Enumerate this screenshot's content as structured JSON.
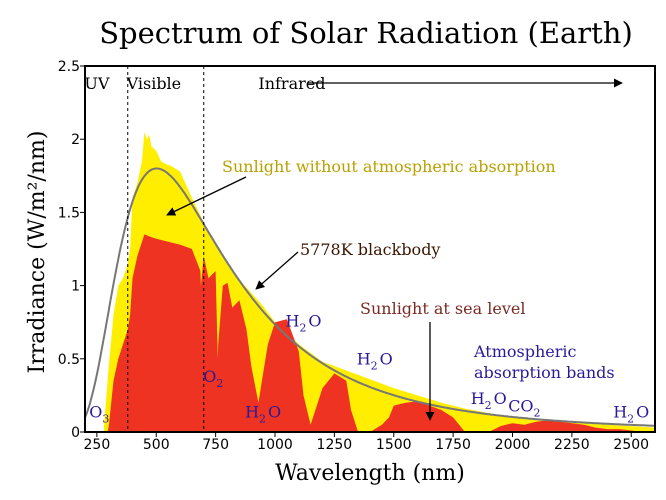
{
  "chart_data": {
    "type": "area",
    "title": "Spectrum of Solar Radiation (Earth)",
    "xlabel": "Wavelength (nm)",
    "ylabel": "Irradiance (W/m²/nm)",
    "xlim": [
      200,
      2600
    ],
    "ylim": [
      0,
      2.5
    ],
    "x_ticks": [
      250,
      500,
      750,
      1000,
      1250,
      1500,
      1750,
      2000,
      2250,
      2500
    ],
    "y_ticks": [
      0,
      0.5,
      1,
      1.5,
      2,
      2.5
    ],
    "y_tick_labels": [
      "0",
      "0.5",
      "1",
      "1.5",
      "2",
      "2.5"
    ],
    "region_boundaries": [
      380,
      700
    ],
    "regions": [
      {
        "label": "UV",
        "x": 250
      },
      {
        "label": "Visible",
        "x": 490
      },
      {
        "label": "Infrared",
        "x": 930
      }
    ],
    "series": [
      {
        "name": "Sunlight without atmospheric absorption",
        "color": "#ffee00",
        "x": [
          280,
          300,
          320,
          340,
          360,
          380,
          390,
          400,
          420,
          440,
          450,
          460,
          470,
          480,
          500,
          520,
          540,
          560,
          600,
          650,
          700,
          750,
          800,
          850,
          900,
          950,
          1000,
          1050,
          1100,
          1200,
          1300,
          1400,
          1500,
          1600,
          1700,
          1800,
          1900,
          2000,
          2100,
          2200,
          2300,
          2400,
          2500,
          2600
        ],
        "values": [
          0.04,
          0.45,
          0.8,
          1.0,
          1.05,
          1.15,
          1.25,
          1.6,
          1.7,
          1.85,
          2.05,
          2.0,
          2.03,
          1.95,
          1.92,
          1.85,
          1.83,
          1.82,
          1.78,
          1.6,
          1.43,
          1.3,
          1.15,
          1.04,
          0.95,
          0.86,
          0.75,
          0.68,
          0.6,
          0.48,
          0.42,
          0.36,
          0.3,
          0.25,
          0.2,
          0.16,
          0.13,
          0.1,
          0.08,
          0.07,
          0.06,
          0.05,
          0.04,
          0.03
        ]
      },
      {
        "name": "Sunlight at sea level",
        "color": "#ee3322",
        "x": [
          295,
          300,
          320,
          340,
          360,
          380,
          390,
          400,
          420,
          450,
          480,
          500,
          550,
          600,
          650,
          686,
          688,
          700,
          720,
          750,
          759,
          761,
          780,
          800,
          820,
          850,
          880,
          900,
          930,
          950,
          970,
          1000,
          1050,
          1100,
          1120,
          1150,
          1200,
          1250,
          1300,
          1320,
          1350,
          1400,
          1450,
          1480,
          1500,
          1550,
          1600,
          1650,
          1700,
          1750,
          1800,
          1850,
          1900,
          1950,
          2000,
          2050,
          2100,
          2150,
          2200,
          2250,
          2300,
          2350,
          2400,
          2450,
          2500,
          2550,
          2600
        ],
        "values": [
          0,
          0.04,
          0.35,
          0.5,
          0.6,
          0.7,
          0.8,
          1.05,
          1.2,
          1.35,
          1.33,
          1.32,
          1.3,
          1.28,
          1.25,
          1.1,
          1.0,
          1.2,
          1.05,
          1.1,
          0.5,
          0.6,
          1.0,
          1.02,
          0.85,
          0.9,
          0.7,
          0.45,
          0.2,
          0.4,
          0.6,
          0.75,
          0.77,
          0.55,
          0.25,
          0.05,
          0.3,
          0.4,
          0.35,
          0.15,
          0.0,
          0.0,
          0.05,
          0.1,
          0.18,
          0.2,
          0.21,
          0.18,
          0.15,
          0.1,
          0.0,
          0.0,
          0.0,
          0.04,
          0.06,
          0.05,
          0.07,
          0.08,
          0.07,
          0.06,
          0.05,
          0.03,
          0.02,
          0.02,
          0.01,
          0.0,
          0.0
        ]
      },
      {
        "name": "5778K blackbody",
        "color": "#777777",
        "temperature_K": 5778,
        "peak": 1.8
      }
    ],
    "annotations": {
      "without_absorption": {
        "text": "Sunlight without atmospheric absorption",
        "color": "#b8a000"
      },
      "blackbody": {
        "text": "5778K blackbody",
        "color": "#3a1500"
      },
      "sea_level": {
        "text": "Sunlight at sea level",
        "color": "#7a2a22"
      },
      "bands_title_1": {
        "text": "Atmospheric",
        "color": "#2a1a9a"
      },
      "bands_title_2": {
        "text": "absorption bands",
        "color": "#2a1a9a"
      }
    },
    "absorption_bands": [
      {
        "base": "O",
        "sub": "3",
        "x": 260,
        "y": 0.1
      },
      {
        "base": "O",
        "sub": "2",
        "x": 740,
        "y": 0.34
      },
      {
        "base": "H",
        "sub": "2",
        "tail": "O",
        "x": 950,
        "y": 0.1
      },
      {
        "base": "H",
        "sub": "2",
        "tail": "O",
        "x": 1120,
        "y": 0.72
      },
      {
        "base": "H",
        "sub": "2",
        "tail": "O",
        "x": 1420,
        "y": 0.46
      },
      {
        "base": "H",
        "sub": "2",
        "tail": "O",
        "x": 1900,
        "y": 0.19
      },
      {
        "base": "CO",
        "sub": "2",
        "x": 2050,
        "y": 0.14
      },
      {
        "base": "H",
        "sub": "2",
        "tail": "O",
        "x": 2500,
        "y": 0.1
      }
    ]
  }
}
